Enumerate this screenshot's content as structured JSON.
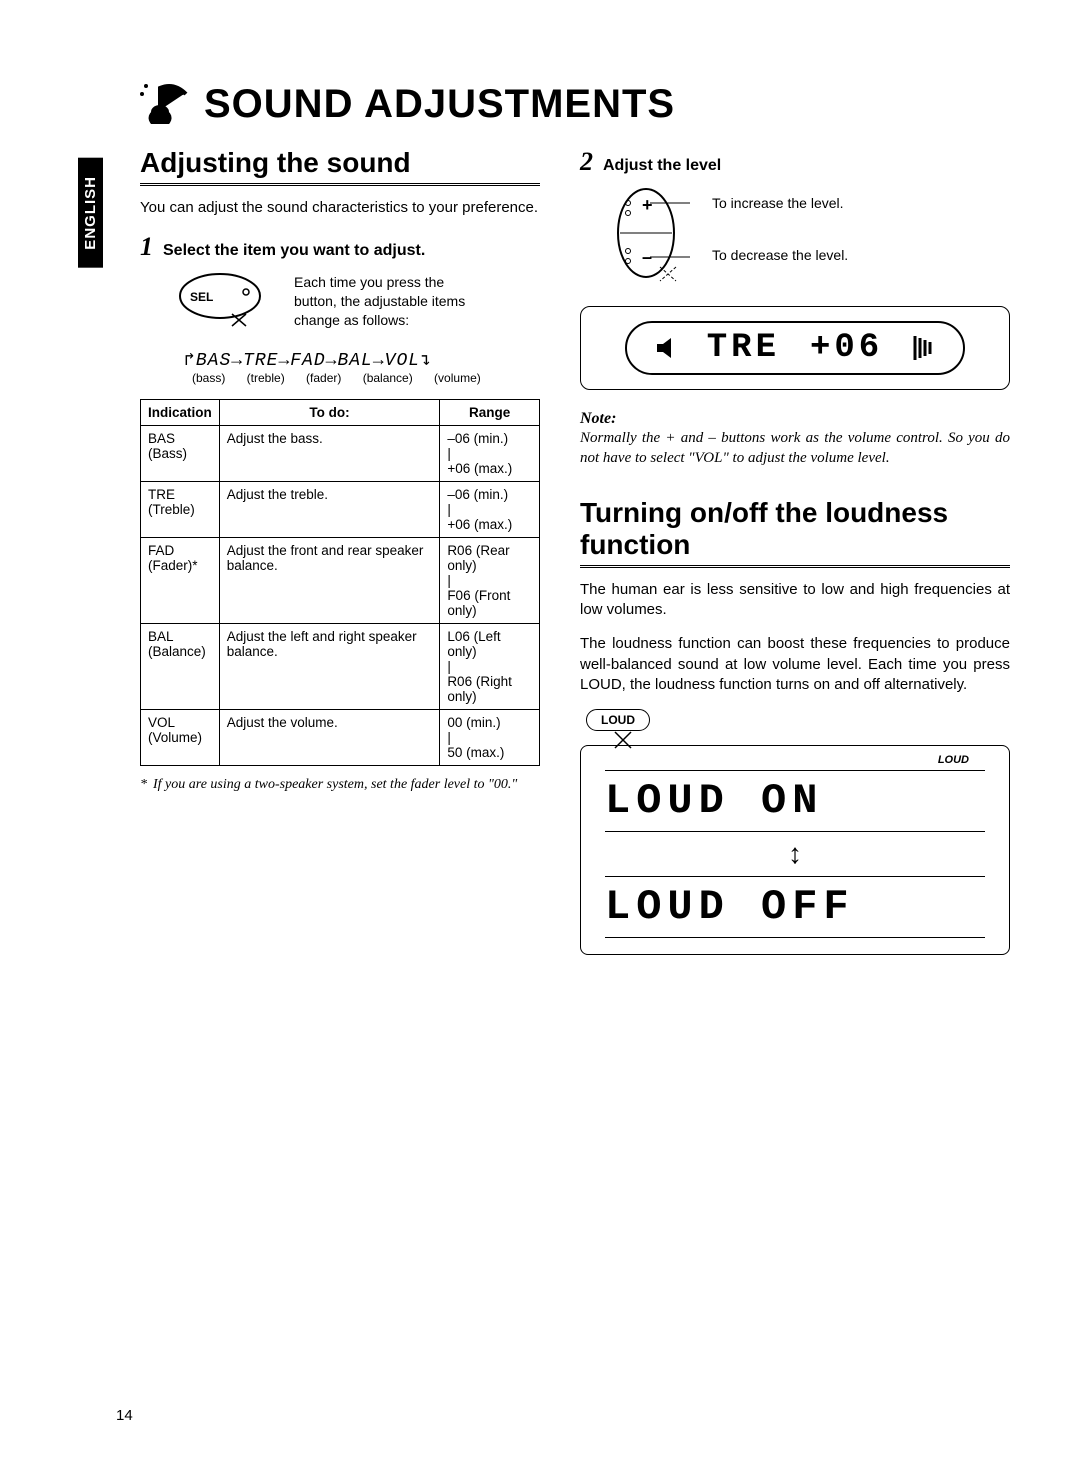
{
  "language_tab": "ENGLISH",
  "page_title": "SOUND ADJUSTMENTS",
  "section1": {
    "heading": "Adjusting the sound",
    "intro": "You can adjust the sound characteristics to your preference.",
    "step1_num": "1",
    "step1_title": "Select the item you want to adjust.",
    "sel_label": "SEL",
    "sel_desc": "Each time you press the button, the adjustable items change as follows:",
    "sequence_items": [
      "BAS",
      "TRE",
      "FAD",
      "BAL",
      "VOL"
    ],
    "sequence_labels": [
      "(bass)",
      "(treble)",
      "(fader)",
      "(balance)",
      "(volume)"
    ],
    "sequence_display": "↱BAS→TRE→FAD→BAL→VOL↴",
    "sequence_labels_display": "(bass)  (treble)  (fader)  (balance)  (volume)",
    "table": {
      "headers": [
        "Indication",
        "To do:",
        "Range"
      ],
      "rows": [
        [
          "BAS\n(Bass)",
          "Adjust the bass.",
          "–06 (min.)\n|\n+06 (max.)"
        ],
        [
          "TRE\n(Treble)",
          "Adjust the treble.",
          "–06 (min.)\n|\n+06 (max.)"
        ],
        [
          "FAD\n(Fader)*",
          "Adjust the front and rear speaker balance.",
          "R06 (Rear only)\n|\nF06 (Front only)"
        ],
        [
          "BAL\n(Balance)",
          "Adjust the left and right speaker balance.",
          "L06 (Left only)\n|\nR06 (Right only)"
        ],
        [
          "VOL\n(Volume)",
          "Adjust the volume.",
          "00 (min.)\n|\n50 (max.)"
        ]
      ]
    },
    "footnote_marker": "*",
    "footnote": "If you are using a two-speaker system, set the fader level to \"00.\""
  },
  "section2": {
    "step2_num": "2",
    "step2_title": "Adjust the level",
    "increase_label": "To increase the level.",
    "decrease_label": "To decrease the level.",
    "lcd_text_left": "TRE",
    "lcd_text_right": "+06",
    "note_heading": "Note:",
    "note_body": "Normally the + and – buttons work as the volume control. So you do not have to select \"VOL\" to adjust the volume level."
  },
  "section3": {
    "heading": "Turning on/off the loudness function",
    "para1": "The human ear is less sensitive to low and high frequencies at low volumes.",
    "para2": "The loudness function can boost these frequencies to produce well-balanced sound at low volume level. Each time you press LOUD, the loudness function turns on and off alternatively.",
    "loud_button": "LOUD",
    "loud_indicator": "LOUD",
    "lcd_on": "LOUD ON",
    "lcd_off": "LOUD OFF"
  },
  "page_number": "14",
  "colors": {
    "text": "#000000",
    "background": "#ffffff"
  }
}
